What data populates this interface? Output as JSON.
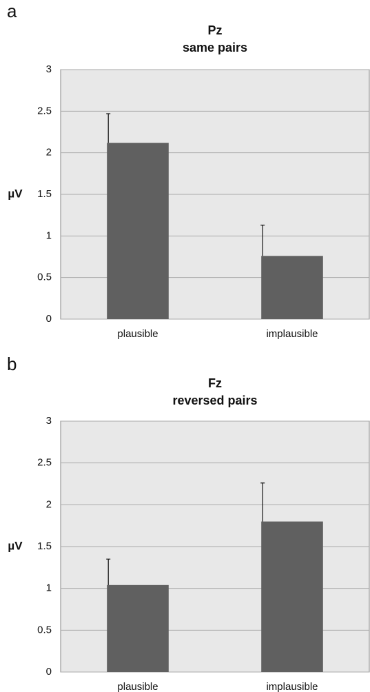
{
  "chart_data": [
    {
      "type": "bar",
      "label": "a",
      "title": "Pz",
      "subtitle": "same pairs",
      "ylabel": "µV",
      "categories": [
        "plausible",
        "implausible"
      ],
      "values": [
        2.12,
        0.76
      ],
      "errors": [
        0.35,
        0.37
      ],
      "color": "#606060",
      "ylim": [
        0,
        3
      ],
      "yticks": [
        0,
        0.5,
        1,
        1.5,
        2,
        2.5,
        3
      ],
      "grid": true
    },
    {
      "type": "bar",
      "label": "b",
      "title": "Fz",
      "subtitle": "reversed pairs",
      "ylabel": "µV",
      "categories": [
        "plausible",
        "implausible"
      ],
      "values": [
        1.04,
        1.8
      ],
      "errors": [
        0.31,
        0.46
      ],
      "color": "#606060",
      "ylim": [
        0,
        3
      ],
      "yticks": [
        0,
        0.5,
        1,
        1.5,
        2,
        2.5,
        3
      ],
      "grid": true
    }
  ]
}
